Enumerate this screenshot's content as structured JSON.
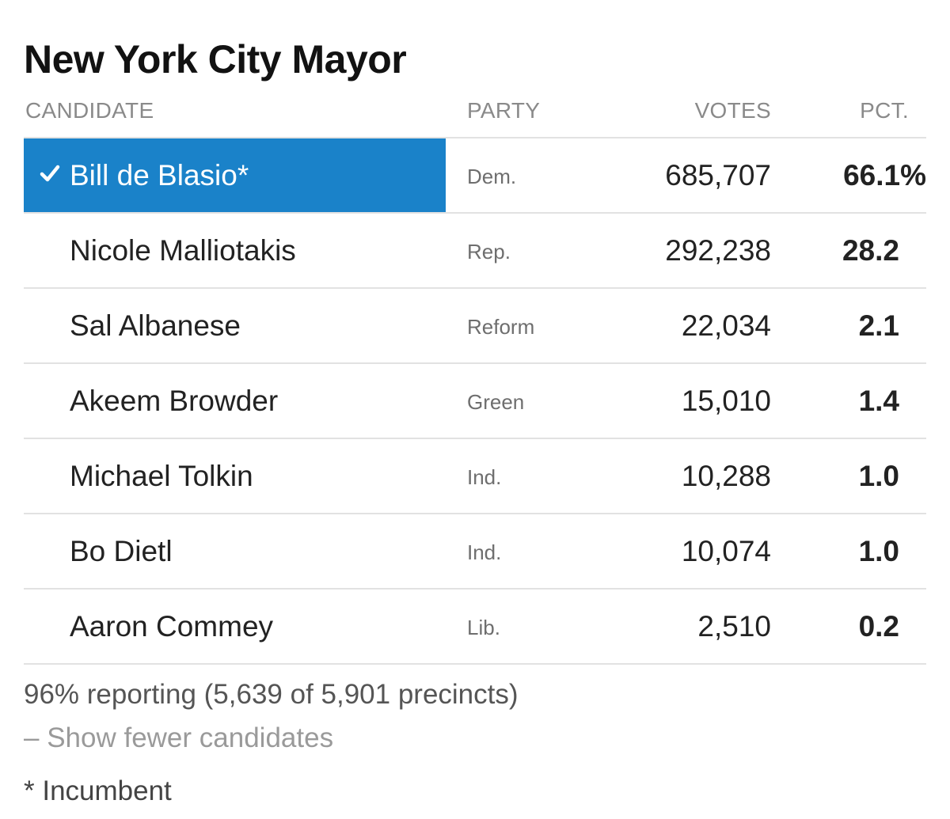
{
  "title": "New York City Mayor",
  "headers": {
    "candidate": "CANDIDATE",
    "party": "PARTY",
    "votes": "VOTES",
    "pct": "PCT."
  },
  "rows": [
    {
      "name": "Bill de Blasio*",
      "party": "Dem.",
      "votes": "685,707",
      "pct": "66.1%",
      "winner": true
    },
    {
      "name": "Nicole Malliotakis",
      "party": "Rep.",
      "votes": "292,238",
      "pct": "28.2",
      "winner": false
    },
    {
      "name": "Sal Albanese",
      "party": "Reform",
      "votes": "22,034",
      "pct": "2.1",
      "winner": false
    },
    {
      "name": "Akeem Browder",
      "party": "Green",
      "votes": "15,010",
      "pct": "1.4",
      "winner": false
    },
    {
      "name": "Michael Tolkin",
      "party": "Ind.",
      "votes": "10,288",
      "pct": "1.0",
      "winner": false
    },
    {
      "name": "Bo Dietl",
      "party": "Ind.",
      "votes": "10,074",
      "pct": "1.0",
      "winner": false
    },
    {
      "name": "Aaron Commey",
      "party": "Lib.",
      "votes": "2,510",
      "pct": "0.2",
      "winner": false
    }
  ],
  "footer": {
    "reporting": "96% reporting (5,639 of 5,901 precincts)",
    "show_fewer": "– Show fewer candidates",
    "incumbent_note": "* Incumbent"
  },
  "colors": {
    "winner_highlight": "#1a82c9",
    "divider": "#e2e2e2"
  },
  "icons": {
    "winner": "checkmark-icon"
  }
}
